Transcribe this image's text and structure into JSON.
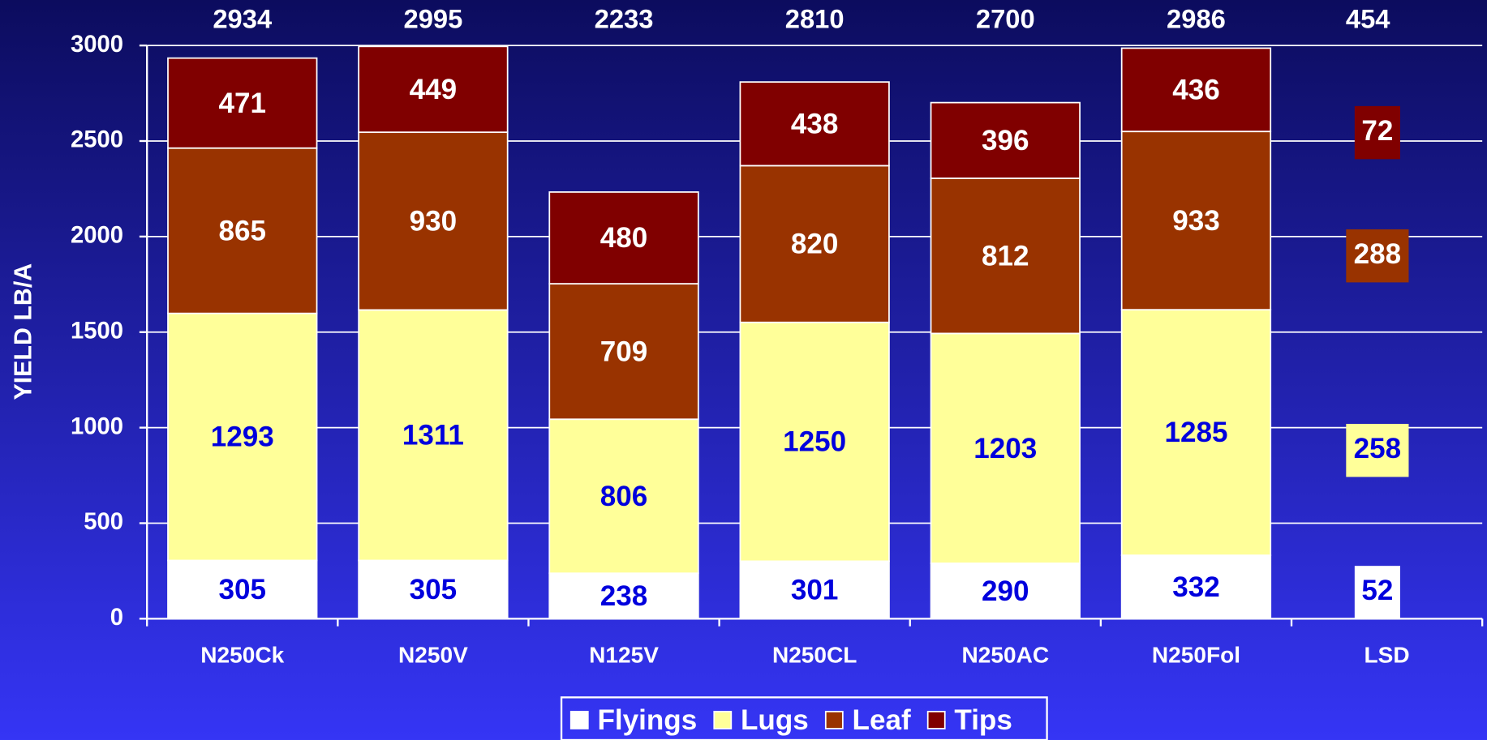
{
  "chart_data": {
    "type": "stacked_bar",
    "y_label": "YIELD LB/A",
    "categories": [
      "N250Ck",
      "N250V",
      "N125V",
      "N250CL",
      "N250AC",
      "N250Fol"
    ],
    "series": [
      {
        "name": "Flyings",
        "color": "#ffffff",
        "label_color": "#0000dd",
        "values": [
          305,
          305,
          238,
          301,
          290,
          332
        ]
      },
      {
        "name": "Lugs",
        "color": "#ffff99",
        "label_color": "#0000dd",
        "values": [
          1293,
          1311,
          806,
          1250,
          1203,
          1285
        ]
      },
      {
        "name": "Leaf",
        "color": "#993300",
        "label_color": "#ffffff",
        "values": [
          865,
          930,
          709,
          820,
          812,
          933
        ]
      },
      {
        "name": "Tips",
        "color": "#800000",
        "label_color": "#ffffff",
        "values": [
          471,
          449,
          480,
          438,
          396,
          436
        ]
      }
    ],
    "totals": [
      2934,
      2995,
      2233,
      2810,
      2700,
      2986
    ],
    "lsd": {
      "category": "LSD",
      "values": [
        52,
        258,
        288,
        72
      ],
      "total": 454
    },
    "ylim": [
      0,
      3000
    ],
    "yticks": [
      0,
      500,
      1000,
      1500,
      2000,
      2500,
      3000
    ],
    "grid": true
  }
}
